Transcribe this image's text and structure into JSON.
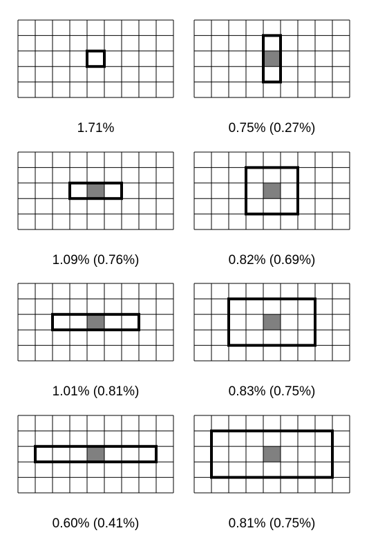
{
  "grid": {
    "rows": 5,
    "cols": 9,
    "line_color": "#000000",
    "shade_color": "#808080"
  },
  "panels": [
    {
      "caption": "1.71%",
      "center": [
        4,
        2
      ],
      "box": {
        "c0": 4,
        "c1": 4,
        "r0": 2,
        "r1": 2
      },
      "shaded": false
    },
    {
      "caption": "0.75% (0.27%)",
      "center": [
        4,
        2
      ],
      "box": {
        "c0": 4,
        "c1": 4,
        "r0": 1,
        "r1": 3
      },
      "shaded": true
    },
    {
      "caption": "1.09% (0.76%)",
      "center": [
        4,
        2
      ],
      "box": {
        "c0": 3,
        "c1": 5,
        "r0": 2,
        "r1": 2
      },
      "shaded": true
    },
    {
      "caption": "0.82% (0.69%)",
      "center": [
        4,
        2
      ],
      "box": {
        "c0": 3,
        "c1": 5,
        "r0": 1,
        "r1": 3
      },
      "shaded": true
    },
    {
      "caption": "1.01% (0.81%)",
      "center": [
        4,
        2
      ],
      "box": {
        "c0": 2,
        "c1": 6,
        "r0": 2,
        "r1": 2
      },
      "shaded": true
    },
    {
      "caption": "0.83% (0.75%)",
      "center": [
        4,
        2
      ],
      "box": {
        "c0": 2,
        "c1": 6,
        "r0": 1,
        "r1": 3
      },
      "shaded": true
    },
    {
      "caption": "0.60% (0.41%)",
      "center": [
        4,
        2
      ],
      "box": {
        "c0": 1,
        "c1": 7,
        "r0": 2,
        "r1": 2
      },
      "shaded": true
    },
    {
      "caption": "0.81% (0.75%)",
      "center": [
        4,
        2
      ],
      "box": {
        "c0": 1,
        "c1": 7,
        "r0": 1,
        "r1": 3
      },
      "shaded": true
    }
  ]
}
